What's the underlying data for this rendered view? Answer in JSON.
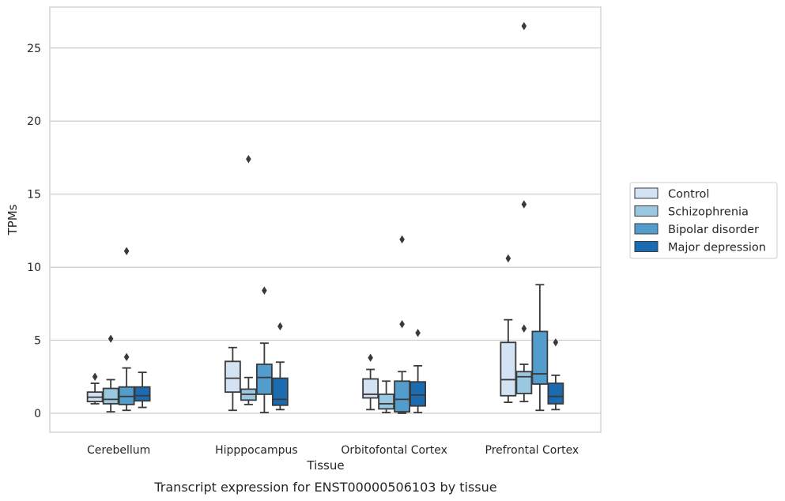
{
  "chart_data": {
    "type": "box",
    "title": "Transcript expression for ENST00000506103 by tissue",
    "xlabel": "Tissue",
    "ylabel": "TPMs",
    "ylim": [
      -1.3,
      27.8
    ],
    "yticks": [
      "0",
      "5",
      "10",
      "15",
      "20",
      "25"
    ],
    "ytick_values": [
      0,
      5,
      10,
      15,
      20,
      25
    ],
    "grid": true,
    "legend_position": "right",
    "categories": [
      "Cerebellum",
      "Hipppocampus",
      "Orbitofontal Cortex",
      "Prefrontal Cortex"
    ],
    "series": [
      {
        "name": "Control",
        "color": "#d3e3f3",
        "boxes": [
          {
            "whislo": 0.65,
            "q1": 0.8,
            "med": 1.1,
            "q3": 1.45,
            "whishi": 2.05,
            "fliers": [
              2.5
            ]
          },
          {
            "whislo": 0.2,
            "q1": 1.45,
            "med": 2.4,
            "q3": 3.55,
            "whishi": 4.5,
            "fliers": []
          },
          {
            "whislo": 0.25,
            "q1": 1.05,
            "med": 1.3,
            "q3": 2.35,
            "whishi": 3.0,
            "fliers": [
              3.8
            ]
          },
          {
            "whislo": 0.75,
            "q1": 1.2,
            "med": 2.3,
            "q3": 4.85,
            "whishi": 6.4,
            "fliers": [
              10.6
            ]
          }
        ]
      },
      {
        "name": "Schizophrenia",
        "color": "#9ac8e0",
        "boxes": [
          {
            "whislo": 0.1,
            "q1": 0.65,
            "med": 0.95,
            "q3": 1.7,
            "whishi": 2.3,
            "fliers": [
              5.1
            ]
          },
          {
            "whislo": 0.6,
            "q1": 0.9,
            "med": 1.3,
            "q3": 1.65,
            "whishi": 2.45,
            "fliers": [
              17.4
            ]
          },
          {
            "whislo": 0.05,
            "q1": 0.3,
            "med": 0.65,
            "q3": 1.3,
            "whishi": 2.2,
            "fliers": []
          },
          {
            "whislo": 0.8,
            "q1": 1.35,
            "med": 2.5,
            "q3": 2.85,
            "whishi": 3.35,
            "fliers": [
              5.8,
              14.3,
              26.5
            ]
          }
        ]
      },
      {
        "name": "Bipolar disorder",
        "color": "#529dcc",
        "boxes": [
          {
            "whislo": 0.2,
            "q1": 0.6,
            "med": 1.15,
            "q3": 1.8,
            "whishi": 3.1,
            "fliers": [
              3.85,
              11.1
            ]
          },
          {
            "whislo": 0.05,
            "q1": 1.3,
            "med": 2.45,
            "q3": 3.35,
            "whishi": 4.8,
            "fliers": [
              8.4
            ]
          },
          {
            "whislo": 0.0,
            "q1": 0.1,
            "med": 0.95,
            "q3": 2.2,
            "whishi": 2.85,
            "fliers": [
              6.1,
              11.9
            ]
          },
          {
            "whislo": 0.2,
            "q1": 2.0,
            "med": 2.7,
            "q3": 5.6,
            "whishi": 8.8,
            "fliers": []
          }
        ]
      },
      {
        "name": "Major depression",
        "color": "#1c6aaf",
        "boxes": [
          {
            "whislo": 0.4,
            "q1": 0.85,
            "med": 1.2,
            "q3": 1.8,
            "whishi": 2.8,
            "fliers": []
          },
          {
            "whislo": 0.25,
            "q1": 0.55,
            "med": 0.95,
            "q3": 2.4,
            "whishi": 3.5,
            "fliers": [
              5.95
            ]
          },
          {
            "whislo": 0.05,
            "q1": 0.5,
            "med": 1.25,
            "q3": 2.15,
            "whishi": 3.25,
            "fliers": [
              5.5
            ]
          },
          {
            "whislo": 0.25,
            "q1": 0.65,
            "med": 1.15,
            "q3": 2.05,
            "whishi": 2.6,
            "fliers": [
              4.85
            ]
          }
        ]
      }
    ]
  }
}
